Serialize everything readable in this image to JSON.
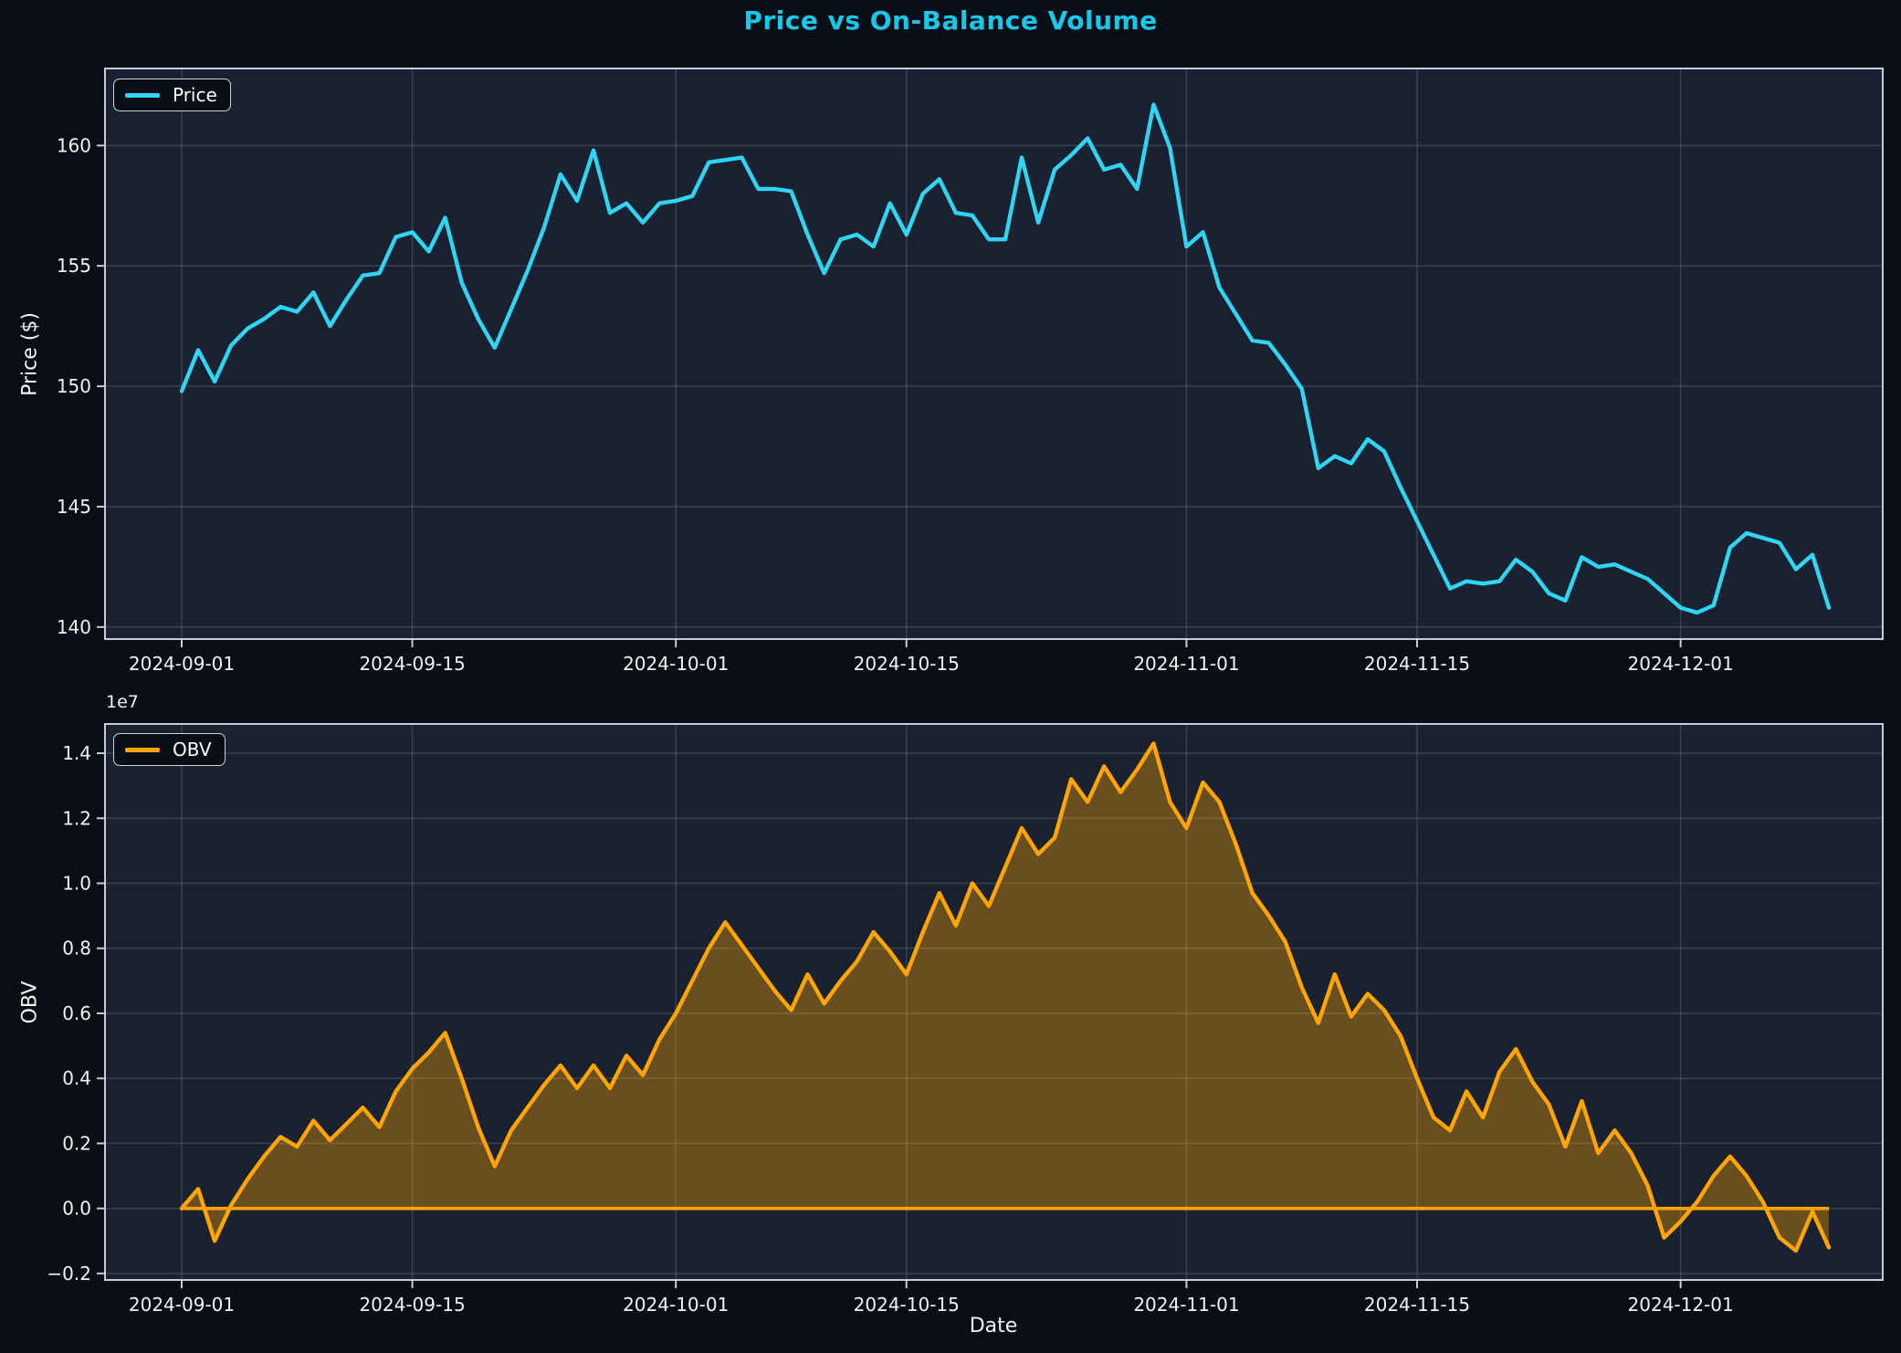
{
  "title": "Price vs On-Balance Volume",
  "colors": {
    "figure_bg": "#0a0e16",
    "axes_bg": "#1a2130",
    "grid": "rgba(205,213,232,0.17)",
    "spine": "#c8ccd4",
    "tick_text": "#f2f2f2",
    "title": "#15c9ec",
    "price_line": "#2fd5f3",
    "obv_line": "#ffa502",
    "obv_fill": "rgba(255,165,2,0.35)"
  },
  "chart_data": {
    "type": "line",
    "title": "Price vs On-Balance Volume",
    "xlabel": "Date",
    "x_start_date": "2024-09-01",
    "x_days": 101,
    "x_tick_day_offsets": [
      0,
      14,
      30,
      44,
      61,
      75,
      91
    ],
    "x_tick_labels": [
      "2024-09-01",
      "2024-09-15",
      "2024-10-01",
      "2024-10-15",
      "2024-11-01",
      "2024-11-15",
      "2024-12-01"
    ],
    "grid": true,
    "panels": [
      {
        "name": "price",
        "legend": "Price",
        "legend_position": "upper-left",
        "ylabel": "Price ($)",
        "ylim": [
          139.5,
          163.2
        ],
        "ytick_values": [
          140,
          145,
          150,
          155,
          160
        ],
        "ytick_labels": [
          "140",
          "145",
          "150",
          "155",
          "160"
        ],
        "line_color": "#2fd5f3",
        "fill": false,
        "values": [
          149.8,
          151.5,
          150.2,
          151.7,
          152.4,
          152.8,
          153.3,
          153.1,
          153.9,
          152.5,
          153.6,
          154.6,
          154.7,
          156.2,
          156.4,
          155.6,
          157.0,
          154.3,
          152.8,
          151.6,
          153.2,
          154.8,
          156.6,
          158.8,
          157.7,
          159.8,
          157.2,
          157.6,
          156.8,
          157.6,
          157.7,
          157.9,
          159.3,
          159.4,
          159.5,
          158.2,
          158.2,
          158.1,
          156.3,
          154.7,
          156.1,
          156.3,
          155.8,
          157.6,
          156.3,
          158.0,
          158.6,
          157.2,
          157.1,
          156.1,
          156.1,
          159.5,
          156.8,
          159.0,
          159.6,
          160.3,
          159.0,
          159.2,
          158.2,
          161.7,
          159.9,
          155.8,
          156.4,
          154.1,
          153.0,
          151.9,
          151.8,
          150.9,
          149.9,
          146.6,
          147.1,
          146.8,
          147.8,
          147.3,
          145.8,
          144.4,
          143.0,
          141.6,
          141.9,
          141.8,
          141.9,
          142.8,
          142.3,
          141.4,
          141.1,
          142.9,
          142.5,
          142.6,
          142.3,
          142.0,
          141.4,
          140.8,
          140.6,
          140.9,
          143.3,
          143.9,
          143.7,
          143.5,
          142.4,
          143.0,
          140.8
        ]
      },
      {
        "name": "obv",
        "legend": "OBV",
        "legend_position": "upper-left",
        "ylabel": "OBV",
        "offset_text": "1e7",
        "unit_scale": 10000000.0,
        "ylim": [
          -0.22,
          1.49
        ],
        "ytick_values": [
          -0.2,
          0.0,
          0.2,
          0.4,
          0.6,
          0.8,
          1.0,
          1.2,
          1.4
        ],
        "ytick_labels": [
          "−0.2",
          "0.0",
          "0.2",
          "0.4",
          "0.6",
          "0.8",
          "1.0",
          "1.2",
          "1.4"
        ],
        "line_color": "#ffa502",
        "fill": true,
        "zero_line": true,
        "values": [
          0.0,
          0.06,
          -0.1,
          0.01,
          0.09,
          0.16,
          0.22,
          0.19,
          0.27,
          0.21,
          0.26,
          0.31,
          0.25,
          0.36,
          0.43,
          0.48,
          0.54,
          0.4,
          0.25,
          0.13,
          0.24,
          0.31,
          0.38,
          0.44,
          0.37,
          0.44,
          0.37,
          0.47,
          0.41,
          0.52,
          0.6,
          0.7,
          0.8,
          0.88,
          0.81,
          0.74,
          0.67,
          0.61,
          0.72,
          0.63,
          0.7,
          0.76,
          0.85,
          0.79,
          0.72,
          0.85,
          0.97,
          0.87,
          1.0,
          0.93,
          1.05,
          1.17,
          1.09,
          1.14,
          1.32,
          1.25,
          1.36,
          1.28,
          1.35,
          1.43,
          1.25,
          1.17,
          1.31,
          1.25,
          1.12,
          0.97,
          0.9,
          0.82,
          0.68,
          0.57,
          0.72,
          0.59,
          0.66,
          0.61,
          0.53,
          0.4,
          0.28,
          0.24,
          0.36,
          0.28,
          0.42,
          0.49,
          0.39,
          0.32,
          0.19,
          0.33,
          0.17,
          0.24,
          0.17,
          0.07,
          -0.09,
          -0.04,
          0.02,
          0.1,
          0.16,
          0.1,
          0.02,
          -0.09,
          -0.13,
          -0.01,
          -0.12
        ]
      }
    ]
  }
}
